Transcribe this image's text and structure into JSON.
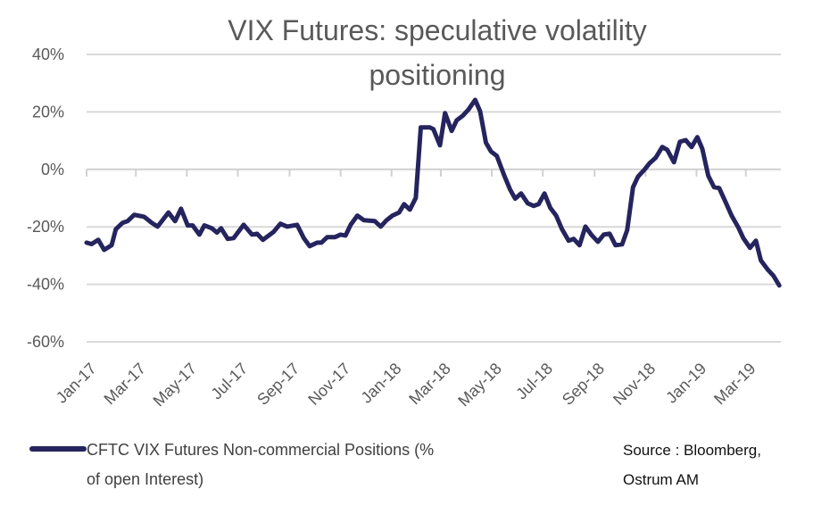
{
  "chart_data": {
    "type": "line",
    "title": "VIX Futures: speculative volatility positioning",
    "title_lines": [
      "VIX Futures: speculative volatility",
      "positioning"
    ],
    "xlabel": "",
    "ylabel": "",
    "ylim": [
      -60,
      40
    ],
    "y_ticks": [
      "40%",
      "20%",
      "0%",
      "-20%",
      "-40%",
      "-60%"
    ],
    "y_tick_values": [
      40,
      20,
      0,
      -20,
      -40,
      -60
    ],
    "x_ticks": [
      "Jan-17",
      "Mar-17",
      "May-17",
      "Jul-17",
      "Sep-17",
      "Nov-17",
      "Jan-18",
      "Mar-18",
      "May-18",
      "Jul-18",
      "Sep-18",
      "Nov-18",
      "Jan-19",
      "Mar-19"
    ],
    "x_tick_dates": [
      "2017-01-01",
      "2017-03-01",
      "2017-05-01",
      "2017-07-01",
      "2017-09-01",
      "2017-11-01",
      "2018-01-01",
      "2018-03-01",
      "2018-05-01",
      "2018-07-01",
      "2018-09-01",
      "2018-11-01",
      "2019-01-01",
      "2019-03-01"
    ],
    "grid": "horizontal",
    "legend_position": "bottom-left",
    "series": [
      {
        "name": "CFTC VIX Futures Non-commercial Positions (% of open Interest)",
        "legend_lines": [
          "CFTC VIX Futures Non-commercial Positions (%",
          "of open Interest)"
        ],
        "color": "#25245e",
        "x": [
          "2017-01-01",
          "2017-01-07",
          "2017-01-15",
          "2017-01-22",
          "2017-01-31",
          "2017-02-05",
          "2017-02-13",
          "2017-02-19",
          "2017-02-27",
          "2017-03-11",
          "2017-03-20",
          "2017-03-27",
          "2017-04-09",
          "2017-04-17",
          "2017-04-24",
          "2017-05-02",
          "2017-05-08",
          "2017-05-16",
          "2017-05-22",
          "2017-05-31",
          "2017-06-06",
          "2017-06-11",
          "2017-06-19",
          "2017-06-26",
          "2017-07-08",
          "2017-07-18",
          "2017-07-24",
          "2017-07-31",
          "2017-08-13",
          "2017-08-21",
          "2017-08-29",
          "2017-09-10",
          "2017-09-18",
          "2017-09-25",
          "2017-10-04",
          "2017-10-09",
          "2017-10-16",
          "2017-10-25",
          "2017-11-01",
          "2017-11-07",
          "2017-11-13",
          "2017-11-21",
          "2017-11-29",
          "2017-12-12",
          "2017-12-19",
          "2017-12-26",
          "2018-01-02",
          "2018-01-10",
          "2018-01-16",
          "2018-01-23",
          "2018-01-30",
          "2018-02-05",
          "2018-02-16",
          "2018-02-20",
          "2018-02-28",
          "2018-03-06",
          "2018-03-14",
          "2018-03-20",
          "2018-03-27",
          "2018-04-03",
          "2018-04-11",
          "2018-04-17",
          "2018-04-24",
          "2018-04-30",
          "2018-05-07",
          "2018-05-16",
          "2018-05-23",
          "2018-05-29",
          "2018-06-05",
          "2018-06-13",
          "2018-06-20",
          "2018-06-26",
          "2018-07-03",
          "2018-07-10",
          "2018-07-17",
          "2018-07-24",
          "2018-08-01",
          "2018-08-07",
          "2018-08-14",
          "2018-08-21",
          "2018-08-28",
          "2018-09-05",
          "2018-09-12",
          "2018-09-19",
          "2018-09-26",
          "2018-10-04",
          "2018-10-10",
          "2018-10-17",
          "2018-10-23",
          "2018-10-31",
          "2018-11-06",
          "2018-11-13",
          "2018-11-21",
          "2018-11-27",
          "2018-12-05",
          "2018-12-12",
          "2018-12-19",
          "2018-12-26",
          "2019-01-02",
          "2019-01-08",
          "2019-01-15",
          "2019-01-22",
          "2019-01-28",
          "2019-02-05",
          "2019-02-12",
          "2019-02-20",
          "2019-02-26",
          "2019-03-06",
          "2019-03-13",
          "2019-03-19",
          "2019-03-27",
          "2019-04-03",
          "2019-04-10"
        ],
        "y": [
          -25.5,
          -26,
          -24.5,
          -28,
          -26.4,
          -20.8,
          -18.6,
          -18,
          -15.8,
          -16.5,
          -18.6,
          -19.9,
          -15,
          -18,
          -13.7,
          -19.5,
          -19.5,
          -22.7,
          -19.5,
          -20.5,
          -22,
          -20.5,
          -24.2,
          -23.9,
          -19.3,
          -22.7,
          -22.4,
          -24.5,
          -21.7,
          -18.9,
          -19.9,
          -19.3,
          -23.9,
          -26.7,
          -25.5,
          -25.5,
          -23.6,
          -23.6,
          -22.7,
          -23,
          -19.3,
          -16.1,
          -17.7,
          -18,
          -19.9,
          -17.7,
          -16.1,
          -15,
          -12.1,
          -14,
          -9.9,
          14.6,
          14.6,
          14,
          8.4,
          19.6,
          13.4,
          17.1,
          18.6,
          20.8,
          24.2,
          20.2,
          9.3,
          6.2,
          4.7,
          -2.2,
          -7.1,
          -10.2,
          -8.4,
          -11.8,
          -12.7,
          -12.1,
          -8.4,
          -13.4,
          -16.1,
          -20.8,
          -24.8,
          -24.2,
          -26.4,
          -19.9,
          -22.7,
          -25.2,
          -22.7,
          -22.4,
          -26.4,
          -26.1,
          -21.1,
          -6.2,
          -2.5,
          0,
          2.2,
          4,
          7.8,
          6.8,
          2.5,
          9.6,
          10.2,
          7.8,
          11.2,
          7.1,
          -2.2,
          -6.2,
          -6.5,
          -11.5,
          -16.1,
          -20.2,
          -23.9,
          -27.3,
          -24.8,
          -31.7,
          -34.8,
          -37,
          -40.4
        ]
      }
    ],
    "source_lines": [
      "Source : Bloomberg,",
      "Ostrum AM"
    ]
  }
}
